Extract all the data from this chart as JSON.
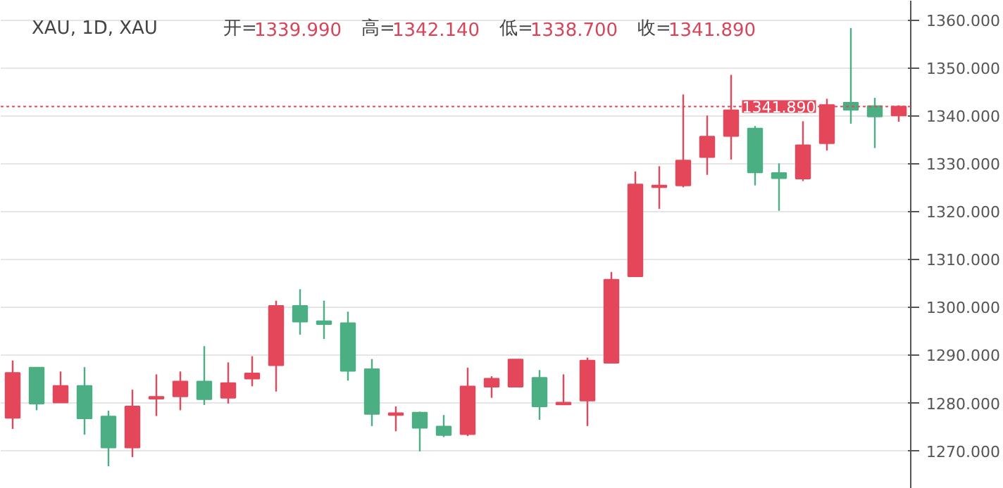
{
  "chart_data": {
    "type": "candlestick",
    "title": "XAU, 1D, XAU",
    "annotations": [
      "开=1339.990",
      "高=1342.140",
      "低=1338.700",
      "收=1341.890"
    ],
    "categories": [
      null,
      null,
      null,
      null,
      null,
      null,
      null,
      null,
      null,
      null,
      null,
      null,
      null,
      null,
      null,
      null,
      null,
      null,
      null,
      null,
      null,
      null,
      null,
      null,
      null,
      null,
      null,
      null,
      null,
      null,
      null,
      null,
      null,
      null,
      null,
      null,
      null,
      null
    ],
    "ohlc": [
      [
        1276.8,
        1288.8,
        1274.5,
        1286.2
      ],
      [
        1287.3,
        1287.3,
        1278.4,
        1279.8
      ],
      [
        1280.0,
        1286.5,
        1280.0,
        1283.5
      ],
      [
        1283.5,
        1287.4,
        1273.3,
        1276.7
      ],
      [
        1277.1,
        1278.3,
        1266.7,
        1270.6
      ],
      [
        1270.6,
        1282.7,
        1268.6,
        1279.2
      ],
      [
        1280.8,
        1285.9,
        1277.2,
        1281.2
      ],
      [
        1281.3,
        1286.5,
        1278.4,
        1284.4
      ],
      [
        1284.4,
        1291.8,
        1279.5,
        1280.7
      ],
      [
        1281.0,
        1288.4,
        1279.8,
        1284.1
      ],
      [
        1285.0,
        1289.7,
        1283.4,
        1286.1
      ],
      [
        1287.8,
        1301.3,
        1282.3,
        1300.2
      ],
      [
        1300.2,
        1303.7,
        1294.2,
        1296.9
      ],
      [
        1297.0,
        1301.3,
        1293.3,
        1296.4
      ],
      [
        1296.6,
        1299.0,
        1284.6,
        1286.6
      ],
      [
        1287.0,
        1289.1,
        1275.1,
        1277.6
      ],
      [
        1277.4,
        1279.2,
        1274.0,
        1277.8
      ],
      [
        1277.9,
        1278.1,
        1269.8,
        1274.7
      ],
      [
        1275.0,
        1277.4,
        1272.8,
        1273.2
      ],
      [
        1273.4,
        1287.3,
        1273.0,
        1283.4
      ],
      [
        1283.3,
        1285.5,
        1281.0,
        1285.0
      ],
      [
        1283.3,
        1289.0,
        1283.3,
        1289.0
      ],
      [
        1285.2,
        1286.8,
        1276.4,
        1279.2
      ],
      [
        1279.6,
        1285.9,
        1279.5,
        1280.0
      ],
      [
        1280.4,
        1289.4,
        1275.1,
        1288.8
      ],
      [
        1288.3,
        1307.3,
        1288.3,
        1305.7
      ],
      [
        1306.4,
        1328.3,
        1306.4,
        1325.6
      ],
      [
        1325.0,
        1329.4,
        1320.5,
        1325.4
      ],
      [
        1325.4,
        1344.4,
        1325.0,
        1330.6
      ],
      [
        1331.3,
        1340.0,
        1327.6,
        1335.6
      ],
      [
        1335.7,
        1348.5,
        1330.8,
        1341.1
      ],
      [
        1337.3,
        1337.8,
        1325.4,
        1328.1
      ],
      [
        1328.0,
        1330.0,
        1320.1,
        1326.9
      ],
      [
        1326.8,
        1338.8,
        1326.3,
        1333.8
      ],
      [
        1334.2,
        1343.5,
        1332.7,
        1342.2
      ],
      [
        1342.7,
        1358.3,
        1338.3,
        1341.2
      ],
      [
        1342.0,
        1343.7,
        1333.2,
        1339.8
      ],
      [
        1339.99,
        1342.14,
        1338.7,
        1341.89
      ]
    ],
    "colors": [
      "#e5475a",
      "#4caf84",
      "#e5475a",
      "#4caf84",
      "#4caf84",
      "#e5475a",
      "#e5475a",
      "#e5475a",
      "#4caf84",
      "#e5475a",
      "#e5475a",
      "#e5475a",
      "#4caf84",
      "#4caf84",
      "#4caf84",
      "#4caf84",
      "#e5475a",
      "#4caf84",
      "#4caf84",
      "#e5475a",
      "#e5475a",
      "#e5475a",
      "#4caf84",
      "#e5475a",
      "#e5475a",
      "#e5475a",
      "#e5475a",
      "#e5475a",
      "#e5475a",
      "#e5475a",
      "#e5475a",
      "#4caf84",
      "#4caf84",
      "#e5475a",
      "#e5475a",
      "#4caf84",
      "#4caf84",
      "#e5475a"
    ],
    "ylim": [
      1262,
      1364
    ],
    "yticks": [
      {
        "value": 1270,
        "label": "1270.000"
      },
      {
        "value": 1280,
        "label": "1280.000"
      },
      {
        "value": 1290,
        "label": "1290.000"
      },
      {
        "value": 1300,
        "label": "1300.000"
      },
      {
        "value": 1310,
        "label": "1310.000"
      },
      {
        "value": 1320,
        "label": "1320.000"
      },
      {
        "value": 1330,
        "label": "1330.000"
      },
      {
        "value": 1340,
        "label": "1340.000"
      },
      {
        "value": 1350,
        "label": "1350.000"
      },
      {
        "value": 1360,
        "label": "1360.000"
      }
    ],
    "ref_lines": [
      {
        "axis": "y",
        "value": 1341.89,
        "label": "1341.890",
        "color": "#e5475a",
        "line_style": "dotted"
      }
    ],
    "grid": "y",
    "tick_labels": "y"
  }
}
